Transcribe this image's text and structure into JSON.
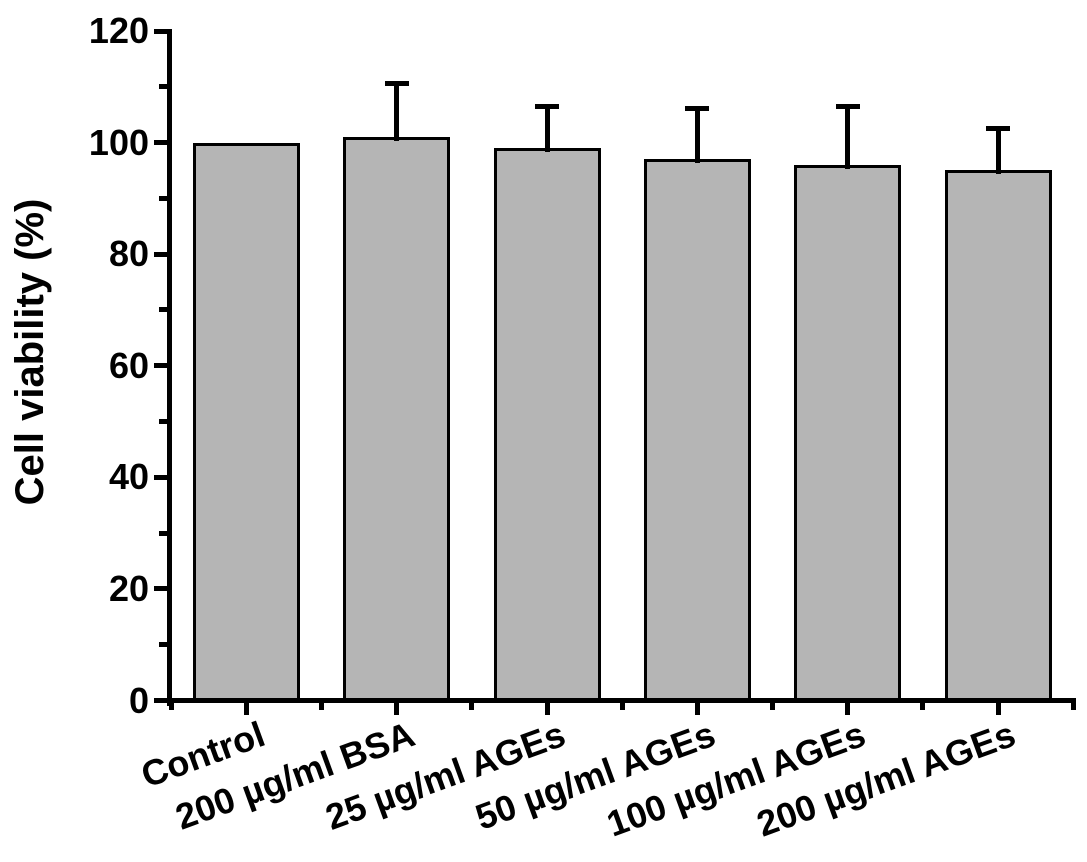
{
  "chart_data": {
    "type": "bar",
    "title": "",
    "xlabel": "",
    "ylabel": "Cell viability (%)",
    "categories": [
      "Control",
      "200 µg/ml BSA",
      "25 µg/ml AGEs",
      "50 µg/ml AGEs",
      "100 µg/ml AGEs",
      "200 µg/ml AGEs"
    ],
    "values": [
      100,
      101,
      99,
      97,
      96,
      95
    ],
    "errors_plus": [
      0,
      10,
      8,
      9.5,
      11,
      8
    ],
    "ylim": [
      0,
      120
    ],
    "yticks_major": [
      0,
      20,
      40,
      60,
      80,
      100,
      120
    ],
    "yticks_minor": [
      10,
      30,
      50,
      70,
      90,
      110
    ],
    "grid": false,
    "legend": "none",
    "bar_fill_color": "#b5b5b5",
    "bar_border_color": "#000000",
    "axis_color": "#000000",
    "background_color": "#ffffff"
  }
}
